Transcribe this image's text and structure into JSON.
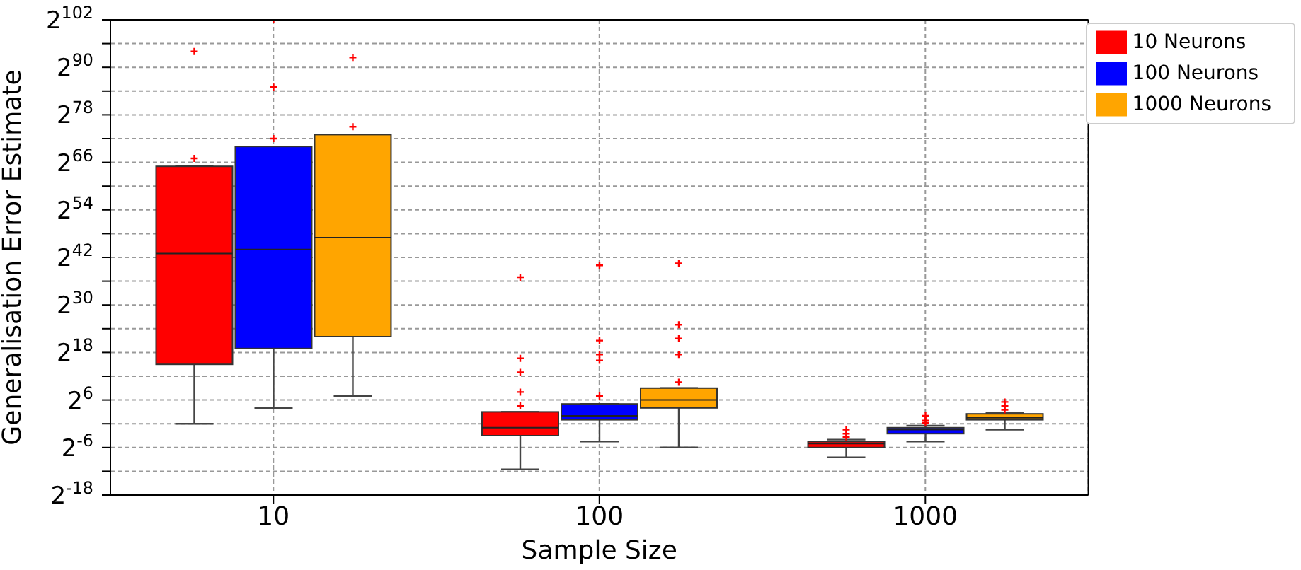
{
  "chart_data": {
    "type": "box",
    "xlabel": "Sample Size",
    "ylabel": "Generalisation Error Estimate",
    "categories": [
      "10",
      "100",
      "1000"
    ],
    "log": "y",
    "grid": true,
    "legend": "top right",
    "ylim": [
      3.814697265625e-06,
      5070602400912917604322383044608
    ],
    "yticks": [
      {
        "value": 3.814697265625e-06,
        "label": "2$^{-18}$"
      },
      {
        "value": 0.000244140625,
        "label": null
      },
      {
        "value": 0.015625,
        "label": "2$^{-6}$"
      },
      {
        "value": 1,
        "label": null
      },
      {
        "value": 64,
        "label": "2$^{6}$"
      },
      {
        "value": 4096,
        "label": null
      },
      {
        "value": 262144,
        "label": "2$^{18}$"
      },
      {
        "value": 16777216,
        "label": null
      },
      {
        "value": 1073741824,
        "label": "2$^{30}$"
      },
      {
        "value": 68719476736,
        "label": null
      },
      {
        "value": 4398046511104,
        "label": "2$^{42}$"
      },
      {
        "value": 281474976710656,
        "label": null
      },
      {
        "value": 18014398509481984,
        "label": "2$^{54}$"
      },
      {
        "value": 1152921504606846976,
        "label": null
      },
      {
        "value": 73786976294838206464,
        "label": "2$^{66}$"
      },
      {
        "value": 4722366482869645213696,
        "label": null
      },
      {
        "value": 302231454903657293676544,
        "label": "2$^{78}$"
      },
      {
        "value": 19342813113834066795298816,
        "label": null
      },
      {
        "value": 1237940039285380274899124224,
        "label": "2$^{90}$"
      },
      {
        "value": 79228162514264337593543950336,
        "label": null
      },
      {
        "value": 5070602400912917604322383044608,
        "label": "2$^{102}$"
      }
    ],
    "series": [
      {
        "name": "10 Neurons",
        "color": "#ff0000",
        "boxes": [
          {
            "low": 1,
            "q1": 32768,
            "median": 8796000000000.0,
            "q3": 3.689e+19,
            "high": 3.689e+19,
            "outliers": [
              1.476e+20,
              1.981e+28
            ]
          },
          {
            "low": 0.0003453,
            "q1": 0.125,
            "median": 0.5,
            "q3": 8,
            "high": 8,
            "outliers": [
              22.6,
              256,
              8192,
              92682,
              137400000000.0
            ]
          },
          {
            "low": 0.00276,
            "q1": 0.0156,
            "median": 0.03125,
            "q3": 0.0442,
            "high": 0.0625,
            "outliers": [
              0.1,
              0.177,
              0.354
            ]
          }
        ]
      },
      {
        "name": "100 Neurons",
        "color": "#0000ff",
        "boxes": [
          {
            "low": 16,
            "q1": 524288,
            "median": 17590000000000.0,
            "q3": 1.181e+21,
            "high": 1.181e+21,
            "outliers": [
              4.722e+21,
              3.869e+25,
              5070602400912917604322383044608
            ]
          },
          {
            "low": 0.0442,
            "q1": 2,
            "median": 4,
            "q3": 32,
            "high": 32,
            "outliers": [
              128,
              65536,
              185364,
              2097152,
              1099500000000.0
            ]
          },
          {
            "low": 0.0442,
            "q1": 0.177,
            "median": 0.354,
            "q3": 0.5,
            "high": 0.707,
            "outliers": [
              1.19,
              1.74,
              4
            ]
          }
        ]
      },
      {
        "name": "1000 Neurons",
        "color": "#ffa500",
        "boxes": [
          {
            "low": 128,
            "q1": 4194304,
            "median": 140700000000000.0,
            "q3": 9.445e+21,
            "high": 9.445e+21,
            "outliers": [
              3.778e+22,
              6.999e+27
            ]
          },
          {
            "low": 0.0156,
            "q1": 16,
            "median": 64,
            "q3": 512,
            "high": 512,
            "outliers": [
              1448,
              185364,
              2965821,
              33554432,
              1555000000000.0
            ]
          },
          {
            "low": 0.354,
            "q1": 2,
            "median": 2.83,
            "q3": 5.66,
            "high": 7,
            "outliers": [
              11.3,
              22.6,
              45.3
            ]
          }
        ]
      }
    ]
  }
}
